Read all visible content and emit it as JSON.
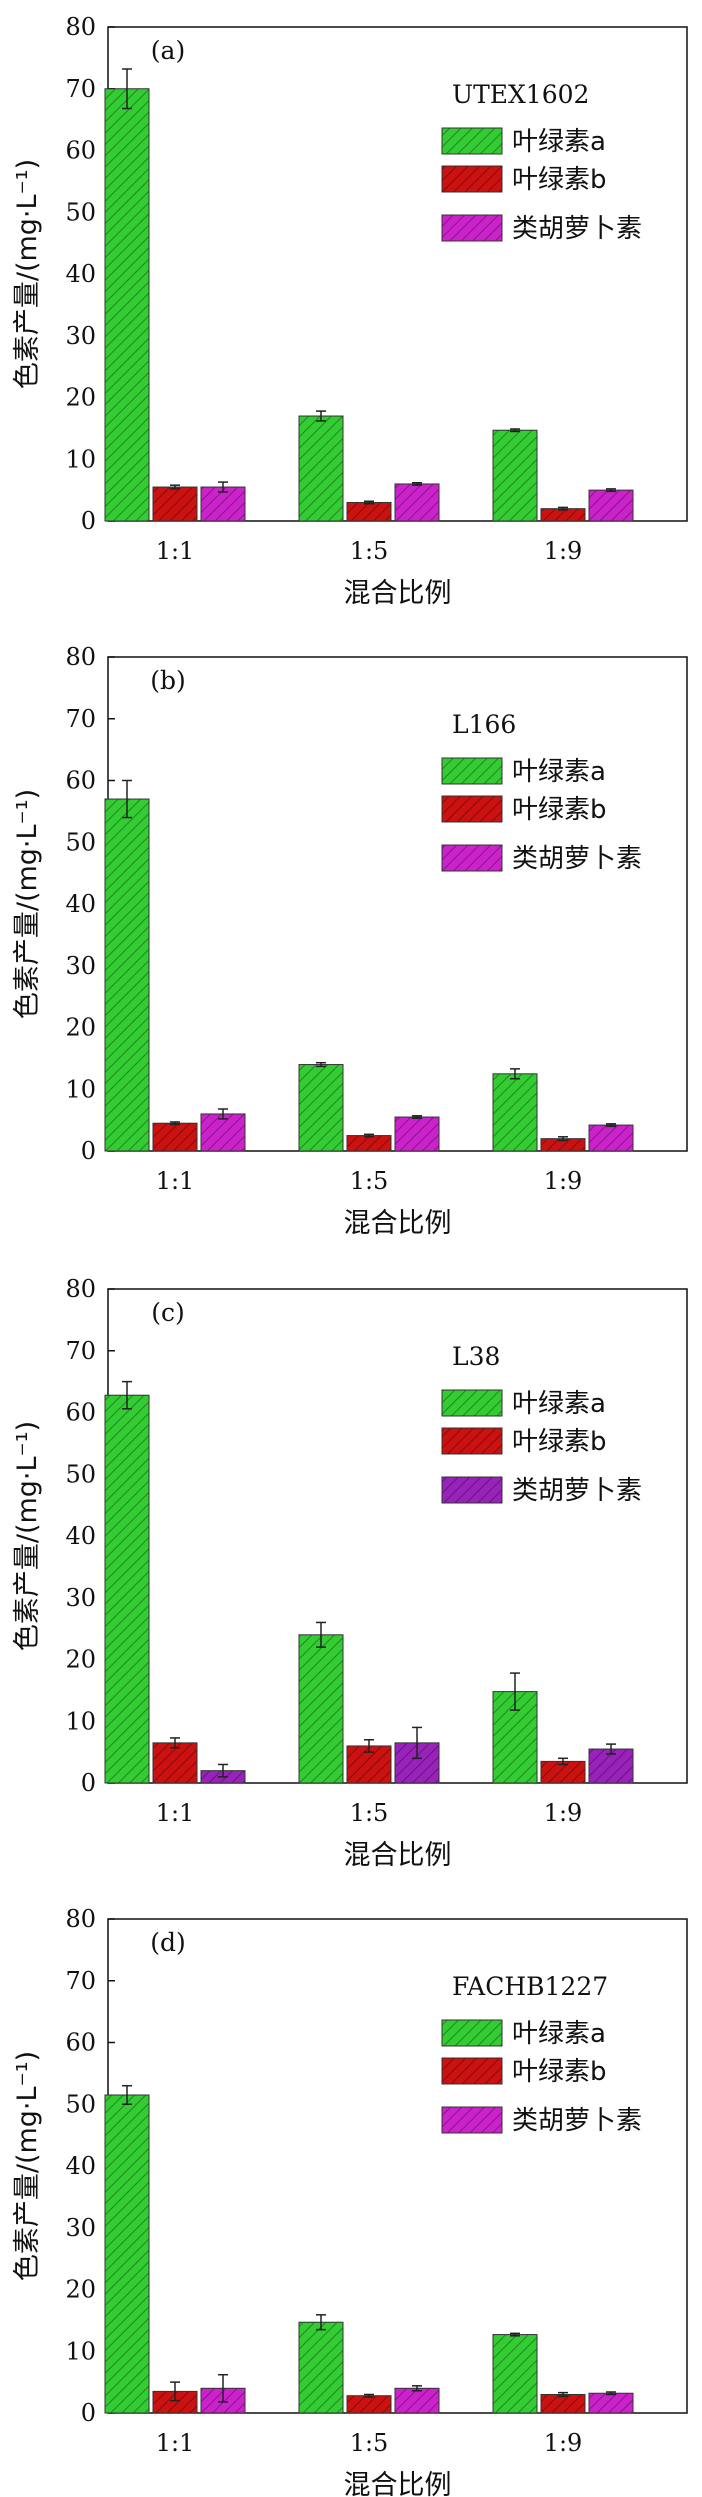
{
  "chart_data": [
    {
      "type": "bar",
      "panel_label": "(a)",
      "legend_title": "UTEX1602",
      "categories": [
        "1:1",
        "1:5",
        "1:9"
      ],
      "xlabel": "混合比例",
      "ylabel": "色素产量/(mg·L⁻¹)",
      "ylim": [
        0,
        80
      ],
      "yticks": [
        0,
        10,
        20,
        30,
        40,
        50,
        60,
        70,
        80
      ],
      "legend_position": "top-right",
      "series": [
        {
          "name": "叶绿素a",
          "color": "#33cc33",
          "values": [
            70,
            17,
            14.7
          ],
          "errors": [
            3.2,
            0.8,
            0.2
          ]
        },
        {
          "name": "叶绿素b",
          "color": "#cc1111",
          "values": [
            5.5,
            3,
            2
          ],
          "errors": [
            0.3,
            0.2,
            0.2
          ]
        },
        {
          "name": "类胡萝卜素",
          "color": "#cc22cc",
          "values": [
            5.5,
            6,
            5
          ],
          "errors": [
            0.8,
            0.2,
            0.2
          ]
        }
      ]
    },
    {
      "type": "bar",
      "panel_label": "(b)",
      "legend_title": "L166",
      "categories": [
        "1:1",
        "1:5",
        "1:9"
      ],
      "xlabel": "混合比例",
      "ylabel": "色素产量/(mg·L⁻¹)",
      "ylim": [
        0,
        80
      ],
      "yticks": [
        0,
        10,
        20,
        30,
        40,
        50,
        60,
        70,
        80
      ],
      "legend_position": "top-right",
      "series": [
        {
          "name": "叶绿素a",
          "color": "#33cc33",
          "values": [
            57,
            14,
            12.5
          ],
          "errors": [
            3,
            0.3,
            0.8
          ]
        },
        {
          "name": "叶绿素b",
          "color": "#cc1111",
          "values": [
            4.5,
            2.5,
            2
          ],
          "errors": [
            0.2,
            0.2,
            0.3
          ]
        },
        {
          "name": "类胡萝卜素",
          "color": "#cc22cc",
          "values": [
            6,
            5.5,
            4.2
          ],
          "errors": [
            0.8,
            0.2,
            0.2
          ]
        }
      ]
    },
    {
      "type": "bar",
      "panel_label": "(c)",
      "legend_title": "L38",
      "categories": [
        "1:1",
        "1:5",
        "1:9"
      ],
      "xlabel": "混合比例",
      "ylabel": "色素产量/(mg·L⁻¹)",
      "ylim": [
        0,
        80
      ],
      "yticks": [
        0,
        10,
        20,
        30,
        40,
        50,
        60,
        70,
        80
      ],
      "legend_position": "top-right",
      "series": [
        {
          "name": "叶绿素a",
          "color": "#33cc33",
          "values": [
            62.8,
            24,
            14.8
          ],
          "errors": [
            2.2,
            2,
            3
          ]
        },
        {
          "name": "叶绿素b",
          "color": "#cc1111",
          "values": [
            6.5,
            6,
            3.5
          ],
          "errors": [
            0.8,
            1,
            0.5
          ]
        },
        {
          "name": "类胡萝卜素",
          "color": "#9922bb",
          "values": [
            2,
            6.5,
            5.5
          ],
          "errors": [
            1,
            2.5,
            0.8
          ]
        }
      ]
    },
    {
      "type": "bar",
      "panel_label": "(d)",
      "legend_title": "FACHB1227",
      "categories": [
        "1:1",
        "1:5",
        "1:9"
      ],
      "xlabel": "混合比例",
      "ylabel": "色素产量/(mg·L⁻¹)",
      "ylim": [
        0,
        80
      ],
      "yticks": [
        0,
        10,
        20,
        30,
        40,
        50,
        60,
        70,
        80
      ],
      "legend_position": "top-right",
      "series": [
        {
          "name": "叶绿素a",
          "color": "#33cc33",
          "values": [
            51.5,
            14.7,
            12.7
          ],
          "errors": [
            1.5,
            1.2,
            0.2
          ]
        },
        {
          "name": "叶绿素b",
          "color": "#cc1111",
          "values": [
            3.5,
            2.8,
            3
          ],
          "errors": [
            1.5,
            0.2,
            0.3
          ]
        },
        {
          "name": "类胡萝卜素",
          "color": "#cc22cc",
          "values": [
            4,
            4,
            3.2
          ],
          "errors": [
            2.2,
            0.4,
            0.2
          ]
        }
      ]
    }
  ]
}
